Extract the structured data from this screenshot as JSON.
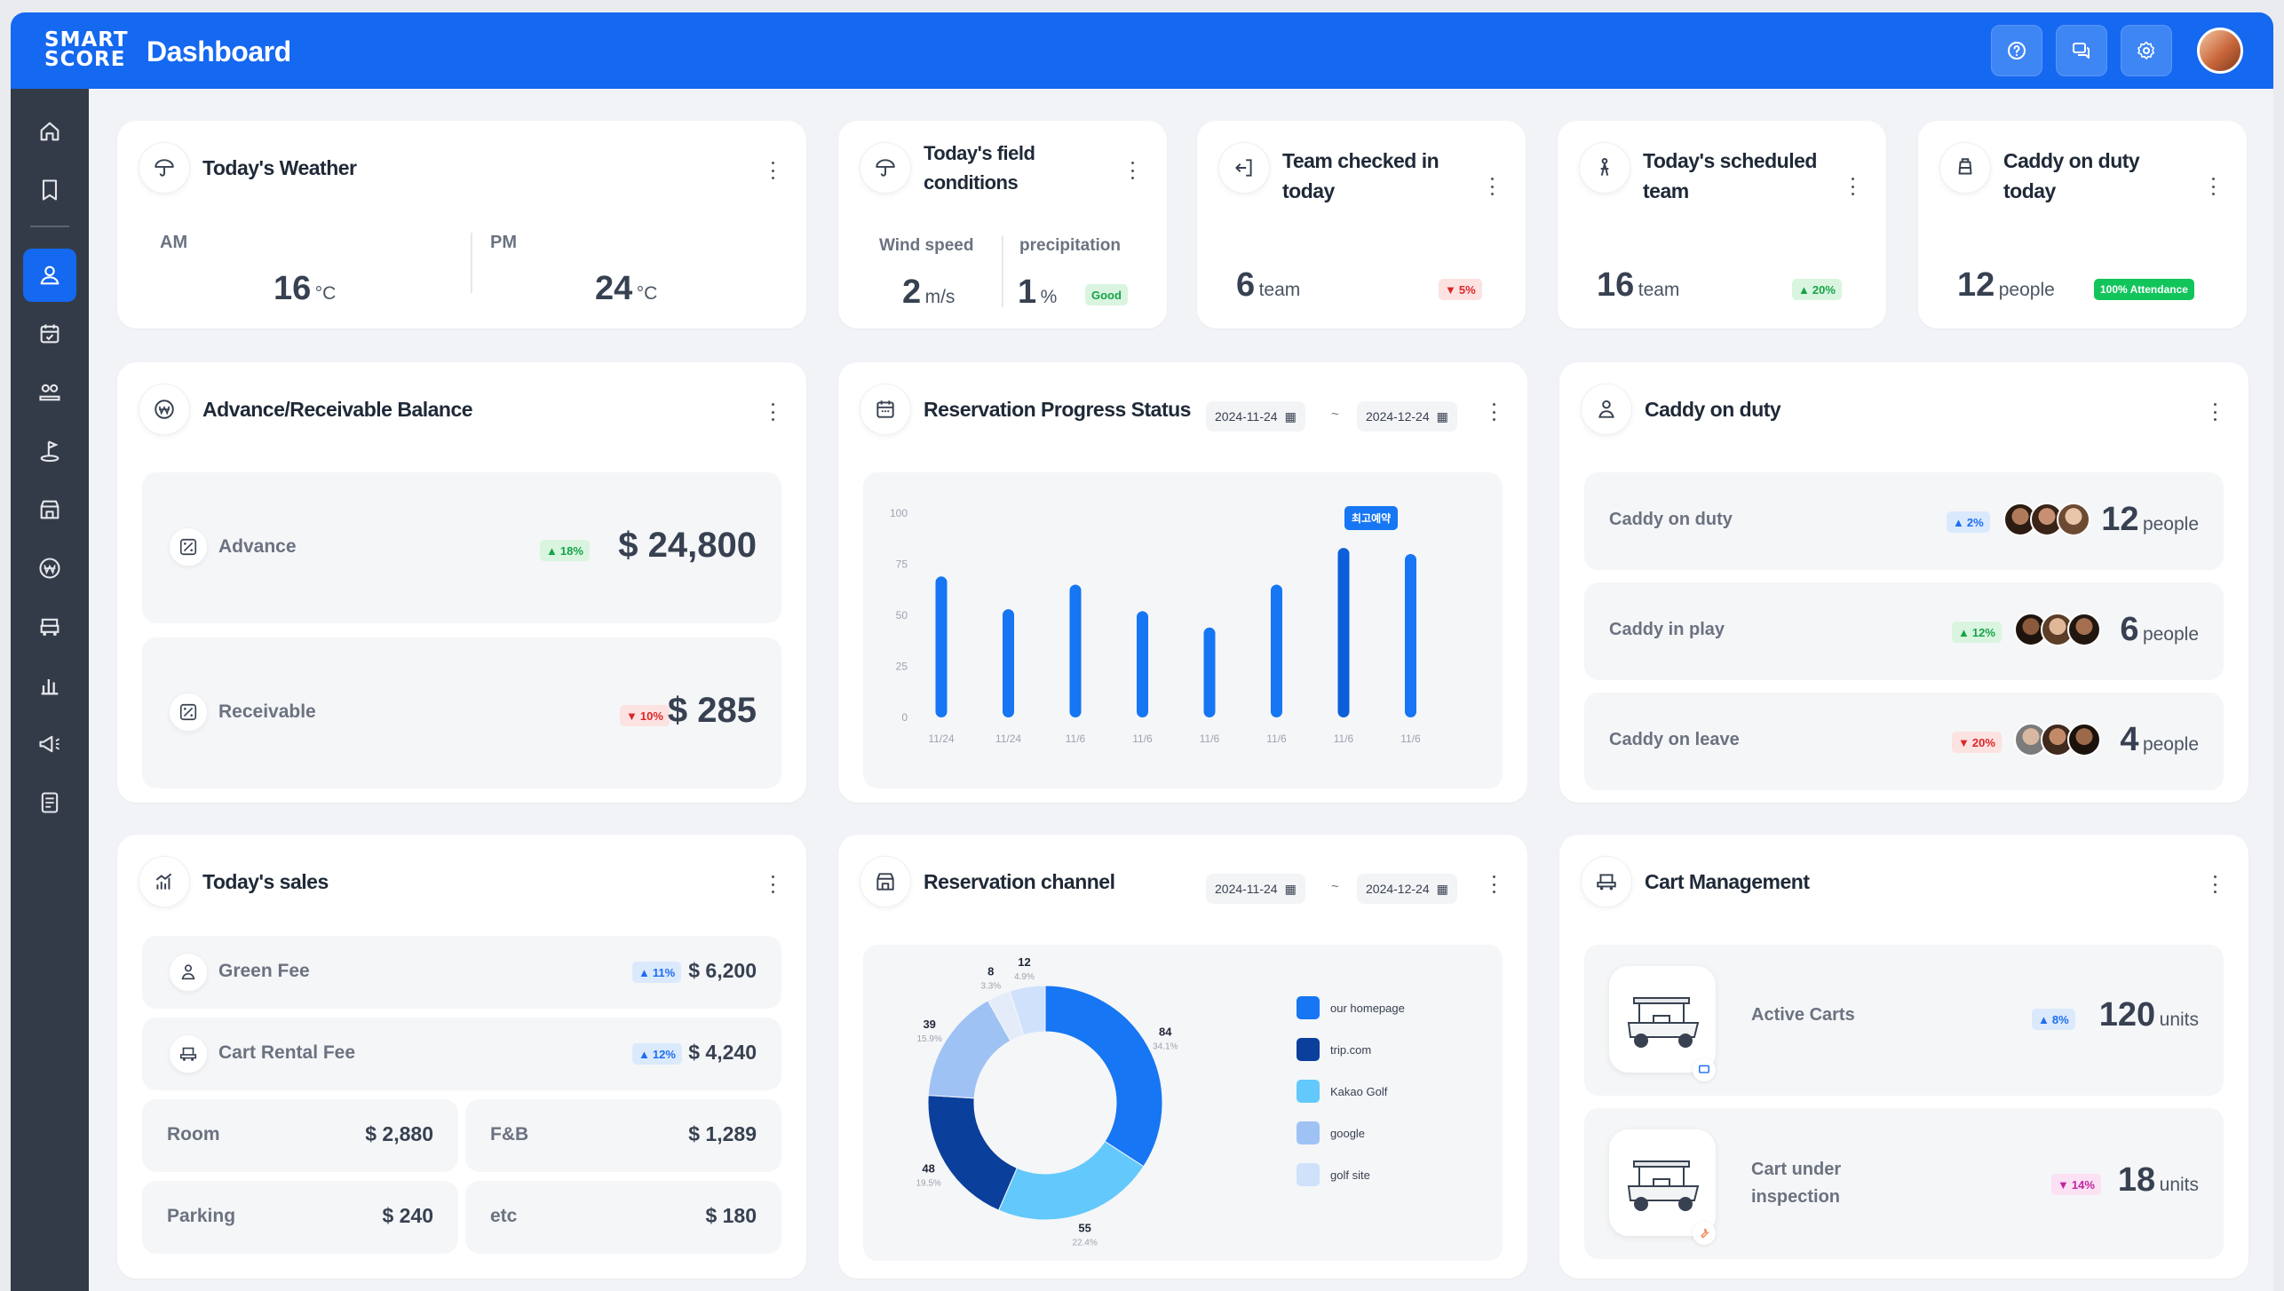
{
  "app": {
    "logo_line1": "SMART",
    "logo_line2": "SCORE",
    "title": "Dashboard"
  },
  "header_icons": [
    "help-icon",
    "chat-icon",
    "settings-icon"
  ],
  "sidebar": [
    "home-icon",
    "bookmark-icon",
    "user-icon",
    "calendar-icon",
    "team-icon",
    "golf-icon",
    "store-icon",
    "won-icon",
    "cart-icon",
    "chart-icon",
    "megaphone-icon",
    "document-icon"
  ],
  "weather": {
    "title": "Today's Weather",
    "am_label": "AM",
    "am_value": "16",
    "am_unit": "°C",
    "pm_label": "PM",
    "pm_value": "24",
    "pm_unit": "°C"
  },
  "field": {
    "title": "Today's field conditions",
    "wind_label": "Wind speed",
    "wind_value": "2",
    "wind_unit": "m/s",
    "precip_label": "precipitation",
    "precip_value": "1",
    "precip_unit": "%",
    "status": "Good"
  },
  "checked_in": {
    "title": "Team checked in today",
    "value": "6",
    "unit": "team",
    "change": "5%"
  },
  "scheduled": {
    "title": "Today's scheduled team",
    "value": "16",
    "unit": "team",
    "change": "20%"
  },
  "caddy_today": {
    "title": "Caddy on duty today",
    "value": "12",
    "unit": "people",
    "badge": "100% Attendance"
  },
  "balance": {
    "title": "Advance/Receivable Balance",
    "advance_label": "Advance",
    "advance_change": "18%",
    "advance_value": "$ 24,800",
    "receivable_label": "Receivable",
    "receivable_change": "10%",
    "receivable_value": "$ 285"
  },
  "reservation": {
    "title": "Reservation Progress Status",
    "date_from": "2024-11-24",
    "date_sep": "~",
    "date_to": "2024-12-24",
    "highlight_label": "최고예약"
  },
  "chart_data": {
    "type": "bar",
    "categories": [
      "11/24",
      "11/24",
      "11/6",
      "11/6",
      "11/6",
      "11/6",
      "11/6",
      "11/6"
    ],
    "values": [
      69,
      53,
      65,
      52,
      44,
      65,
      83,
      80
    ],
    "ylim": [
      0,
      100
    ],
    "yticks": [
      0,
      25,
      50,
      75,
      100
    ],
    "highlight_index": 6,
    "colors": {
      "bar": "#1676f3",
      "highlight": "#0c5fd8"
    }
  },
  "caddy": {
    "title": "Caddy on duty",
    "rows": [
      {
        "label": "Caddy on duty",
        "change": "2%",
        "value": "12",
        "unit": "people"
      },
      {
        "label": "Caddy in play",
        "change": "12%",
        "value": "6",
        "unit": "people"
      },
      {
        "label": "Caddy on leave",
        "change": "20%",
        "value": "4",
        "unit": "people"
      }
    ]
  },
  "sales": {
    "title": "Today's sales",
    "green_label": "Green Fee",
    "green_change": "11%",
    "green_value": "$ 6,200",
    "cart_label": "Cart Rental Fee",
    "cart_change": "12%",
    "cart_value": "$ 4,240",
    "grid": [
      {
        "label": "Room",
        "value": "$ 2,880"
      },
      {
        "label": "F&B",
        "value": "$ 1,289"
      },
      {
        "label": "Parking",
        "value": "$ 240"
      },
      {
        "label": "etc",
        "value": "$ 180"
      }
    ]
  },
  "channel": {
    "title": "Reservation channel",
    "date_from": "2024-11-24",
    "date_sep": "~",
    "date_to": "2024-12-24",
    "slices": [
      {
        "name": "our homepage",
        "value": "84",
        "pct": "34.1%",
        "color": "#1676f3"
      },
      {
        "name": "trip.com",
        "value": "48",
        "pct": "19.5%",
        "color": "#0a3f9c"
      },
      {
        "name": "Kakao Golf",
        "value": "55",
        "pct": "22.4%",
        "color": "#63c8fb"
      },
      {
        "name": "google",
        "value": "39",
        "pct": "15.9%",
        "color": "#9fc2f5"
      },
      {
        "name": "golf site",
        "value": "12",
        "pct": "4.9%",
        "color": "#cfe1fb"
      },
      {
        "name": "",
        "value": "8",
        "pct": "3.3%",
        "color": "#e4ecf9"
      }
    ]
  },
  "carts": {
    "title": "Cart Management",
    "active_label": "Active Carts",
    "active_change": "8%",
    "active_value": "120",
    "active_unit": "units",
    "inspect_label_1": "Cart under",
    "inspect_label_2": "inspection",
    "inspect_change": "14%",
    "inspect_value": "18",
    "inspect_unit": "units"
  }
}
